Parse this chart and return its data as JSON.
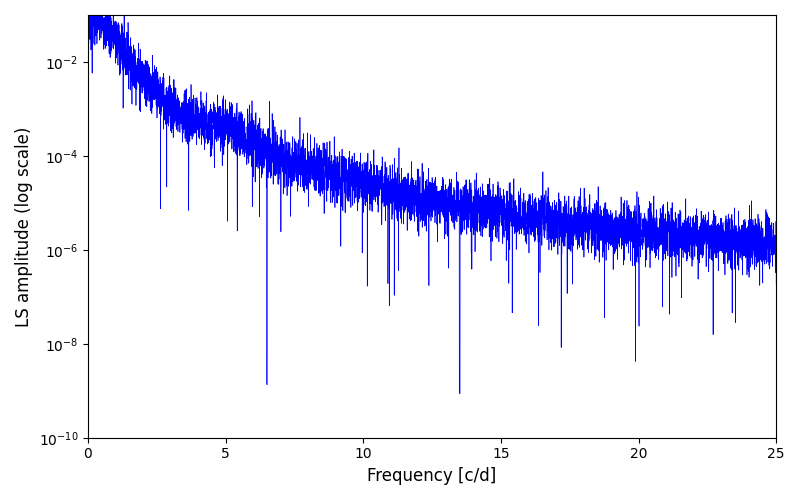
{
  "title": "",
  "xlabel": "Frequency [c/d]",
  "ylabel": "LS amplitude (log scale)",
  "line_color": "#0000ff",
  "xlim": [
    0,
    25
  ],
  "ylim_log": [
    -10,
    -1
  ],
  "figsize": [
    8.0,
    5.0
  ],
  "dpi": 100,
  "freq_max": 25.0,
  "n_points": 6000,
  "seed": 7
}
